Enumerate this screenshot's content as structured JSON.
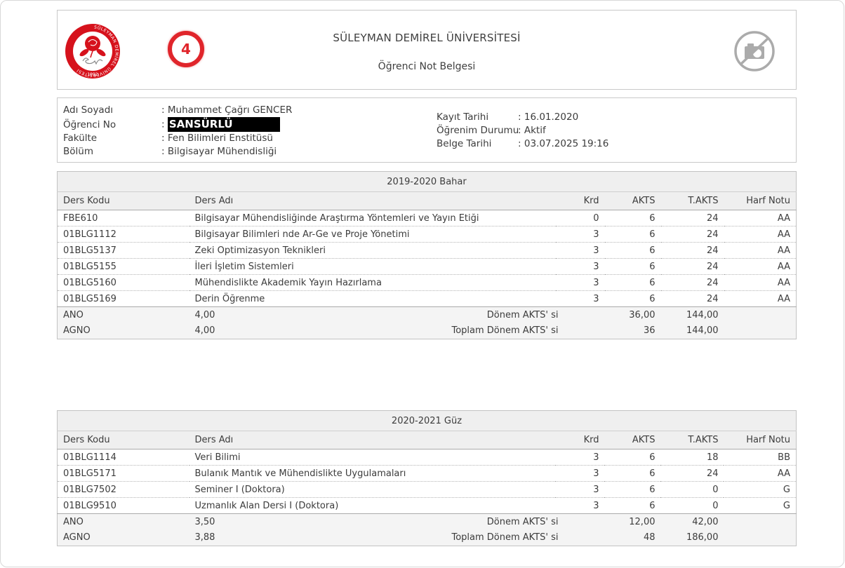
{
  "header": {
    "university_title": "SÜLEYMAN DEMİREL ÜNİVERSİTESİ",
    "document_title": "Öğrenci Not Belgesi",
    "annotation_number": "4",
    "logo_ring_text": "SÜLEYMAN DEMİREL ÜNİVERSİTESİ",
    "logo_year": "1992",
    "no_photo_icon": "camera-slash-icon"
  },
  "student_info": {
    "left": [
      {
        "label": "Adı Soyadı",
        "value": "Muhammet Çağrı GENCER"
      },
      {
        "label": "Öğrenci No",
        "value": "SANSÜRLÜ"
      },
      {
        "label": "Fakülte",
        "value": "Fen Bilimleri Enstitüsü"
      },
      {
        "label": "Bölüm",
        "value": "Bilgisayar Mühendisliği"
      }
    ],
    "right": [
      {
        "label": "Kayıt Tarihi",
        "value": "16.01.2020"
      },
      {
        "label": "Öğrenim Durumu",
        "value": "Aktif"
      },
      {
        "label": "Belge Tarihi",
        "value": "03.07.2025 19:16"
      }
    ],
    "colon": ":"
  },
  "table_columns": [
    "Ders Kodu",
    "Ders Adı",
    "Krd",
    "AKTS",
    "T.AKTS",
    "Harf Notu"
  ],
  "semesters": [
    {
      "title": "2019-2020 Bahar",
      "courses": [
        {
          "code": "FBE610",
          "name": "Bilgisayar Mühendisliğinde Araştırma Yöntemleri ve Yayın Etiği",
          "krd": "0",
          "akts": "6",
          "takts": "24",
          "grade": "AA"
        },
        {
          "code": "01BLG1112",
          "name": "Bilgisayar Bilimleri nde Ar-Ge ve Proje Yönetimi",
          "krd": "3",
          "akts": "6",
          "takts": "24",
          "grade": "AA"
        },
        {
          "code": "01BLG5137",
          "name": "Zeki Optimizasyon Teknikleri",
          "krd": "3",
          "akts": "6",
          "takts": "24",
          "grade": "AA"
        },
        {
          "code": "01BLG5155",
          "name": "İleri İşletim Sistemleri",
          "krd": "3",
          "akts": "6",
          "takts": "24",
          "grade": "AA"
        },
        {
          "code": "01BLG5160",
          "name": "Mühendislikte Akademik Yayın Hazırlama",
          "krd": "3",
          "akts": "6",
          "takts": "24",
          "grade": "AA"
        },
        {
          "code": "01BLG5169",
          "name": "Derin Öğrenme",
          "krd": "3",
          "akts": "6",
          "takts": "24",
          "grade": "AA"
        }
      ],
      "summary": [
        {
          "label": "ANO",
          "value": "4,00",
          "akts_label": "Dönem AKTS' si",
          "akts": "36,00",
          "takts": "144,00"
        },
        {
          "label": "AGNO",
          "value": "4,00",
          "akts_label": "Toplam Dönem AKTS' si",
          "akts": "36",
          "takts": "144,00"
        }
      ]
    },
    {
      "title": "2020-2021 Güz",
      "courses": [
        {
          "code": "01BLG1114",
          "name": "Veri Bilimi",
          "krd": "3",
          "akts": "6",
          "takts": "18",
          "grade": "BB"
        },
        {
          "code": "01BLG5171",
          "name": "Bulanık Mantık ve Mühendislikte Uygulamaları",
          "krd": "3",
          "akts": "6",
          "takts": "24",
          "grade": "AA"
        },
        {
          "code": "01BLG7502",
          "name": "Seminer I (Doktora)",
          "krd": "3",
          "akts": "6",
          "takts": "0",
          "grade": "G"
        },
        {
          "code": "01BLG9510",
          "name": "Uzmanlık Alan Dersi I (Doktora)",
          "krd": "3",
          "akts": "6",
          "takts": "0",
          "grade": "G"
        }
      ],
      "summary": [
        {
          "label": "ANO",
          "value": "3,50",
          "akts_label": "Dönem AKTS' si",
          "akts": "12,00",
          "takts": "42,00"
        },
        {
          "label": "AGNO",
          "value": "3,88",
          "akts_label": "Toplam Dönem AKTS' si",
          "akts": "48",
          "takts": "186,00"
        }
      ]
    }
  ],
  "colors": {
    "accent_red": "#e0252b",
    "logo_red": "#d6121c",
    "text": "#3c3c3c",
    "border": "#c9c9c9",
    "band_bg": "#efefef",
    "summary_bg": "#f4f4f4",
    "redaction_bg": "#000000",
    "redaction_text": "#ffffff",
    "icon_gray": "#ababab"
  }
}
